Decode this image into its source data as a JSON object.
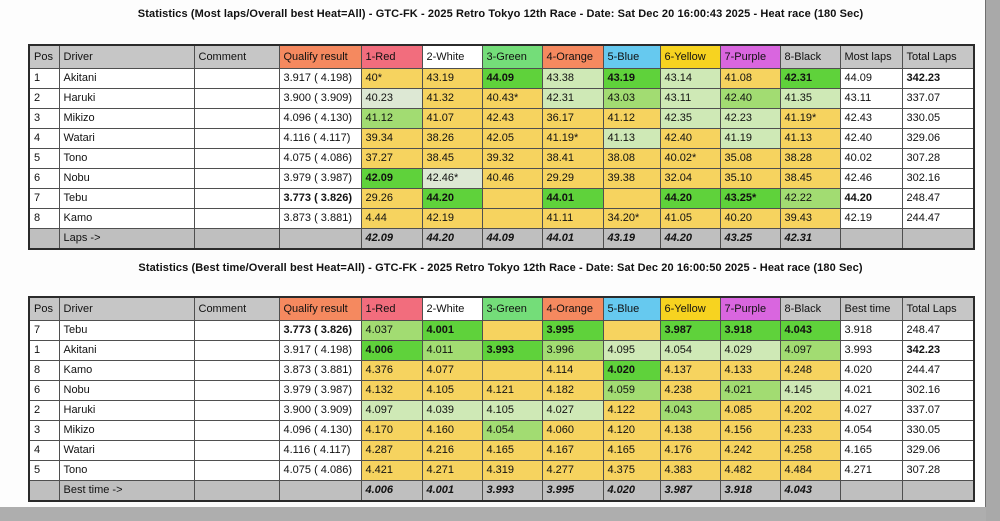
{
  "colors": {
    "cell": {
      "g1": "#5fd23b",
      "g2": "#a2dc72",
      "g3": "#cfe9b6",
      "g4": "#dde8d4",
      "y": "#f6d35f",
      "w": "#ffffff"
    },
    "header_gray": "#c6c6c6",
    "footer_gray": "#bfbfbf"
  },
  "tables": [
    {
      "title": "Statistics (Most laps/Overall best Heat=All) - GTC-FK - 2025 Retro Tokyo 12th Race - Date: Sat Dec 20 16:00:43 2025 - Heat race (180 Sec)",
      "headers": [
        {
          "label": "Pos",
          "bg": "#c6c6c6"
        },
        {
          "label": "Driver",
          "bg": "#c6c6c6"
        },
        {
          "label": "Comment",
          "bg": "#c6c6c6"
        },
        {
          "label": "Qualify result",
          "bg": "#f5895f"
        },
        {
          "label": "1-Red",
          "bg": "#f26d7d"
        },
        {
          "label": "2-White",
          "bg": "#ffffff"
        },
        {
          "label": "3-Green",
          "bg": "#74dd79"
        },
        {
          "label": "4-Orange",
          "bg": "#f5895f"
        },
        {
          "label": "5-Blue",
          "bg": "#66c9ef"
        },
        {
          "label": "6-Yellow",
          "bg": "#f7d320"
        },
        {
          "label": "7-Purple",
          "bg": "#d966df"
        },
        {
          "label": "8-Black",
          "bg": "#c6c6c6"
        },
        {
          "label": "Most laps",
          "bg": "#c6c6c6",
          "bold": false
        },
        {
          "label": "Total Laps",
          "bg": "#c6c6c6",
          "bold": true
        }
      ],
      "rows": [
        {
          "pos": "1",
          "driver": "Akitani",
          "comment": "",
          "qualify": "3.917 ( 4.198)",
          "heats": [
            {
              "v": "40*",
              "c": "y"
            },
            {
              "v": "43.19",
              "c": "y"
            },
            {
              "v": "44.09",
              "c": "g1",
              "b": true
            },
            {
              "v": "43.38",
              "c": "g3"
            },
            {
              "v": "43.19",
              "c": "g1",
              "b": true
            },
            {
              "v": "43.14",
              "c": "g3"
            },
            {
              "v": "41.08",
              "c": "y"
            },
            {
              "v": "42.31",
              "c": "g1",
              "b": true
            }
          ],
          "best": "44.09",
          "total": "342.23",
          "total_bold": true
        },
        {
          "pos": "2",
          "driver": "Haruki",
          "comment": "",
          "qualify": "3.900 ( 3.909)",
          "heats": [
            {
              "v": "40.23",
              "c": "g4"
            },
            {
              "v": "41.32",
              "c": "y"
            },
            {
              "v": "40.43*",
              "c": "y"
            },
            {
              "v": "42.31",
              "c": "g3"
            },
            {
              "v": "43.03",
              "c": "g2"
            },
            {
              "v": "43.11",
              "c": "g3"
            },
            {
              "v": "42.40",
              "c": "g2"
            },
            {
              "v": "41.35",
              "c": "g3"
            }
          ],
          "best": "43.11",
          "total": "337.07"
        },
        {
          "pos": "3",
          "driver": "Mikizo",
          "comment": "",
          "qualify": "4.096 ( 4.130)",
          "heats": [
            {
              "v": "41.12",
              "c": "g2"
            },
            {
              "v": "41.07",
              "c": "y"
            },
            {
              "v": "42.43",
              "c": "y"
            },
            {
              "v": "36.17",
              "c": "y"
            },
            {
              "v": "41.12",
              "c": "y"
            },
            {
              "v": "42.35",
              "c": "g3"
            },
            {
              "v": "42.23",
              "c": "g3"
            },
            {
              "v": "41.19*",
              "c": "y"
            }
          ],
          "best": "42.43",
          "total": "330.05"
        },
        {
          "pos": "4",
          "driver": "Watari",
          "comment": "",
          "qualify": "4.116 ( 4.117)",
          "heats": [
            {
              "v": "39.34",
              "c": "y"
            },
            {
              "v": "38.26",
              "c": "y"
            },
            {
              "v": "42.05",
              "c": "y"
            },
            {
              "v": "41.19*",
              "c": "y"
            },
            {
              "v": "41.13",
              "c": "g3"
            },
            {
              "v": "42.40",
              "c": "y"
            },
            {
              "v": "41.19",
              "c": "g3"
            },
            {
              "v": "41.13",
              "c": "y"
            }
          ],
          "best": "42.40",
          "total": "329.06"
        },
        {
          "pos": "5",
          "driver": "Tono",
          "comment": "",
          "qualify": "4.075 ( 4.086)",
          "heats": [
            {
              "v": "37.27",
              "c": "y"
            },
            {
              "v": "38.45",
              "c": "y"
            },
            {
              "v": "39.32",
              "c": "y"
            },
            {
              "v": "38.41",
              "c": "y"
            },
            {
              "v": "38.08",
              "c": "y"
            },
            {
              "v": "40.02*",
              "c": "y"
            },
            {
              "v": "35.08",
              "c": "y"
            },
            {
              "v": "38.28",
              "c": "y"
            }
          ],
          "best": "40.02",
          "total": "307.28"
        },
        {
          "pos": "6",
          "driver": "Nobu",
          "comment": "",
          "qualify": "3.979 ( 3.987)",
          "heats": [
            {
              "v": "42.09",
              "c": "g1",
              "b": true
            },
            {
              "v": "42.46*",
              "c": "g4"
            },
            {
              "v": "40.46",
              "c": "y"
            },
            {
              "v": "29.29",
              "c": "y"
            },
            {
              "v": "39.38",
              "c": "y"
            },
            {
              "v": "32.04",
              "c": "y"
            },
            {
              "v": "35.10",
              "c": "y"
            },
            {
              "v": "38.45",
              "c": "y"
            }
          ],
          "best": "42.46",
          "total": "302.16"
        },
        {
          "pos": "7",
          "driver": "Tebu",
          "comment": "",
          "qualify": "3.773 ( 3.826)",
          "qualify_bold": true,
          "heats": [
            {
              "v": "29.26",
              "c": "y"
            },
            {
              "v": "44.20",
              "c": "g1",
              "b": true
            },
            {
              "v": "",
              "c": "y"
            },
            {
              "v": "44.01",
              "c": "g1",
              "b": true
            },
            {
              "v": "",
              "c": "y"
            },
            {
              "v": "44.20",
              "c": "g1",
              "b": true
            },
            {
              "v": "43.25*",
              "c": "g1",
              "b": true
            },
            {
              "v": "42.22",
              "c": "g2"
            }
          ],
          "best": "44.20",
          "best_bold": true,
          "total": "248.47"
        },
        {
          "pos": "8",
          "driver": "Kamo",
          "comment": "",
          "qualify": "3.873 ( 3.881)",
          "heats": [
            {
              "v": "4.44",
              "c": "y"
            },
            {
              "v": "42.19",
              "c": "y"
            },
            {
              "v": "",
              "c": "y"
            },
            {
              "v": "41.11",
              "c": "y"
            },
            {
              "v": "34.20*",
              "c": "y"
            },
            {
              "v": "41.05",
              "c": "y"
            },
            {
              "v": "40.20",
              "c": "y"
            },
            {
              "v": "39.43",
              "c": "y"
            }
          ],
          "best": "42.19",
          "total": "244.47"
        }
      ],
      "footer": {
        "label": "Laps ->",
        "values": [
          "42.09",
          "44.20",
          "44.09",
          "44.01",
          "43.19",
          "44.20",
          "43.25",
          "42.31"
        ]
      }
    },
    {
      "title": "Statistics (Best time/Overall best Heat=All) - GTC-FK - 2025 Retro Tokyo 12th Race - Date: Sat Dec 20 16:00:50 2025 - Heat race (180 Sec)",
      "headers": [
        {
          "label": "Pos",
          "bg": "#c6c6c6"
        },
        {
          "label": "Driver",
          "bg": "#c6c6c6"
        },
        {
          "label": "Comment",
          "bg": "#c6c6c6"
        },
        {
          "label": "Qualify result",
          "bg": "#f5895f"
        },
        {
          "label": "1-Red",
          "bg": "#f26d7d"
        },
        {
          "label": "2-White",
          "bg": "#ffffff"
        },
        {
          "label": "3-Green",
          "bg": "#74dd79"
        },
        {
          "label": "4-Orange",
          "bg": "#f5895f"
        },
        {
          "label": "5-Blue",
          "bg": "#66c9ef"
        },
        {
          "label": "6-Yellow",
          "bg": "#f7d320"
        },
        {
          "label": "7-Purple",
          "bg": "#d966df"
        },
        {
          "label": "8-Black",
          "bg": "#c6c6c6"
        },
        {
          "label": "Best time",
          "bg": "#c6c6c6",
          "bold": true
        },
        {
          "label": "Total Laps",
          "bg": "#c6c6c6",
          "bold": false
        }
      ],
      "rows": [
        {
          "pos": "7",
          "driver": "Tebu",
          "comment": "",
          "qualify": "3.773 ( 3.826)",
          "qualify_bold": true,
          "heats": [
            {
              "v": "4.037",
              "c": "g2"
            },
            {
              "v": "4.001",
              "c": "g1",
              "b": true
            },
            {
              "v": "",
              "c": "y"
            },
            {
              "v": "3.995",
              "c": "g1",
              "b": true
            },
            {
              "v": "",
              "c": "y"
            },
            {
              "v": "3.987",
              "c": "g1",
              "b": true
            },
            {
              "v": "3.918",
              "c": "g1",
              "b": true
            },
            {
              "v": "4.043",
              "c": "g1",
              "b": true
            }
          ],
          "best": "3.918",
          "total": "248.47"
        },
        {
          "pos": "1",
          "driver": "Akitani",
          "comment": "",
          "qualify": "3.917 ( 4.198)",
          "heats": [
            {
              "v": "4.006",
              "c": "g1",
              "b": true
            },
            {
              "v": "4.011",
              "c": "g2"
            },
            {
              "v": "3.993",
              "c": "g1",
              "b": true
            },
            {
              "v": "3.996",
              "c": "g2"
            },
            {
              "v": "4.095",
              "c": "g3"
            },
            {
              "v": "4.054",
              "c": "g3"
            },
            {
              "v": "4.029",
              "c": "g3"
            },
            {
              "v": "4.097",
              "c": "g2"
            }
          ],
          "best": "3.993",
          "total": "342.23",
          "total_bold": true
        },
        {
          "pos": "8",
          "driver": "Kamo",
          "comment": "",
          "qualify": "3.873 ( 3.881)",
          "heats": [
            {
              "v": "4.376",
              "c": "y"
            },
            {
              "v": "4.077",
              "c": "y"
            },
            {
              "v": "",
              "c": "y"
            },
            {
              "v": "4.114",
              "c": "y"
            },
            {
              "v": "4.020",
              "c": "g1",
              "b": true
            },
            {
              "v": "4.137",
              "c": "y"
            },
            {
              "v": "4.133",
              "c": "y"
            },
            {
              "v": "4.248",
              "c": "y"
            }
          ],
          "best": "4.020",
          "total": "244.47"
        },
        {
          "pos": "6",
          "driver": "Nobu",
          "comment": "",
          "qualify": "3.979 ( 3.987)",
          "heats": [
            {
              "v": "4.132",
              "c": "y"
            },
            {
              "v": "4.105",
              "c": "y"
            },
            {
              "v": "4.121",
              "c": "y"
            },
            {
              "v": "4.182",
              "c": "y"
            },
            {
              "v": "4.059",
              "c": "g2"
            },
            {
              "v": "4.238",
              "c": "y"
            },
            {
              "v": "4.021",
              "c": "g2"
            },
            {
              "v": "4.145",
              "c": "g3"
            }
          ],
          "best": "4.021",
          "total": "302.16"
        },
        {
          "pos": "2",
          "driver": "Haruki",
          "comment": "",
          "qualify": "3.900 ( 3.909)",
          "heats": [
            {
              "v": "4.097",
              "c": "g3"
            },
            {
              "v": "4.039",
              "c": "g3"
            },
            {
              "v": "4.105",
              "c": "g3"
            },
            {
              "v": "4.027",
              "c": "g3"
            },
            {
              "v": "4.122",
              "c": "y"
            },
            {
              "v": "4.043",
              "c": "g2"
            },
            {
              "v": "4.085",
              "c": "y"
            },
            {
              "v": "4.202",
              "c": "y"
            }
          ],
          "best": "4.027",
          "total": "337.07"
        },
        {
          "pos": "3",
          "driver": "Mikizo",
          "comment": "",
          "qualify": "4.096 ( 4.130)",
          "heats": [
            {
              "v": "4.170",
              "c": "y"
            },
            {
              "v": "4.160",
              "c": "y"
            },
            {
              "v": "4.054",
              "c": "g2"
            },
            {
              "v": "4.060",
              "c": "y"
            },
            {
              "v": "4.120",
              "c": "y"
            },
            {
              "v": "4.138",
              "c": "y"
            },
            {
              "v": "4.156",
              "c": "y"
            },
            {
              "v": "4.233",
              "c": "y"
            }
          ],
          "best": "4.054",
          "total": "330.05"
        },
        {
          "pos": "4",
          "driver": "Watari",
          "comment": "",
          "qualify": "4.116 ( 4.117)",
          "heats": [
            {
              "v": "4.287",
              "c": "y"
            },
            {
              "v": "4.216",
              "c": "y"
            },
            {
              "v": "4.165",
              "c": "y"
            },
            {
              "v": "4.167",
              "c": "y"
            },
            {
              "v": "4.165",
              "c": "y"
            },
            {
              "v": "4.176",
              "c": "y"
            },
            {
              "v": "4.242",
              "c": "y"
            },
            {
              "v": "4.258",
              "c": "y"
            }
          ],
          "best": "4.165",
          "total": "329.06"
        },
        {
          "pos": "5",
          "driver": "Tono",
          "comment": "",
          "qualify": "4.075 ( 4.086)",
          "heats": [
            {
              "v": "4.421",
              "c": "y"
            },
            {
              "v": "4.271",
              "c": "y"
            },
            {
              "v": "4.319",
              "c": "y"
            },
            {
              "v": "4.277",
              "c": "y"
            },
            {
              "v": "4.375",
              "c": "y"
            },
            {
              "v": "4.383",
              "c": "y"
            },
            {
              "v": "4.482",
              "c": "y"
            },
            {
              "v": "4.484",
              "c": "y"
            }
          ],
          "best": "4.271",
          "total": "307.28"
        }
      ],
      "footer": {
        "label": "Best time ->",
        "values": [
          "4.006",
          "4.001",
          "3.993",
          "3.995",
          "4.020",
          "3.987",
          "3.918",
          "4.043"
        ]
      }
    }
  ]
}
